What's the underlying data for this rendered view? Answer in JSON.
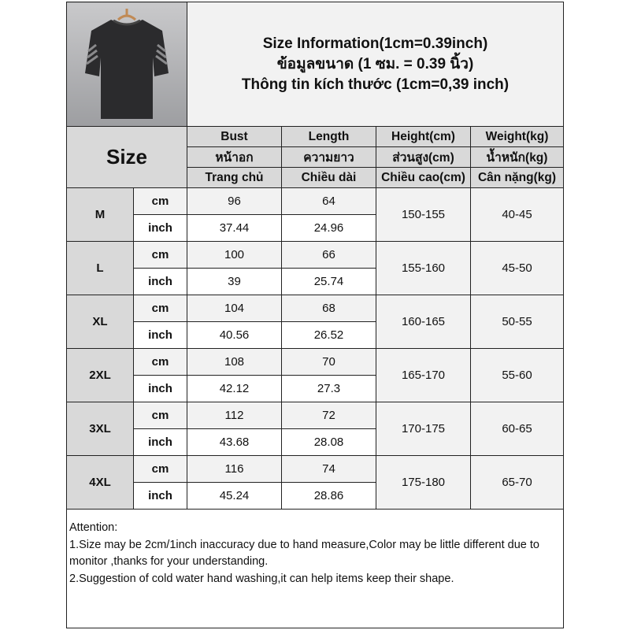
{
  "title_lines": [
    "Size Information(1cm=0.39inch)",
    "ข้อมูลขนาด (1 ซม. = 0.39 นิ้ว)",
    "Thông tin kích thước (1cm=0,39 inch)"
  ],
  "size_header": "Size",
  "columns": [
    [
      "Bust",
      "หน้าอก",
      "Trang chủ"
    ],
    [
      "Length",
      "ความยาว",
      "Chiều dài"
    ],
    [
      "Height(cm)",
      "ส่วนสูง(cm)",
      "Chiều cao(cm)"
    ],
    [
      "Weight(kg)",
      "น้ำหนัก(kg)",
      "Cân nặng(kg)"
    ]
  ],
  "units": {
    "cm": "cm",
    "inch": "inch"
  },
  "rows": [
    {
      "size": "M",
      "cm": [
        "96",
        "64"
      ],
      "inch": [
        "37.44",
        "24.96"
      ],
      "height": "150-155",
      "weight": "40-45"
    },
    {
      "size": "L",
      "cm": [
        "100",
        "66"
      ],
      "inch": [
        "39",
        "25.74"
      ],
      "height": "155-160",
      "weight": "45-50"
    },
    {
      "size": "XL",
      "cm": [
        "104",
        "68"
      ],
      "inch": [
        "40.56",
        "26.52"
      ],
      "height": "160-165",
      "weight": "50-55"
    },
    {
      "size": "2XL",
      "cm": [
        "108",
        "70"
      ],
      "inch": [
        "42.12",
        "27.3"
      ],
      "height": "165-170",
      "weight": "55-60"
    },
    {
      "size": "3XL",
      "cm": [
        "112",
        "72"
      ],
      "inch": [
        "43.68",
        "28.08"
      ],
      "height": "170-175",
      "weight": "60-65"
    },
    {
      "size": "4XL",
      "cm": [
        "116",
        "74"
      ],
      "inch": [
        "45.24",
        "28.86"
      ],
      "height": "175-180",
      "weight": "65-70"
    }
  ],
  "notes": [
    "Attention:",
    "1.Size may be 2cm/1inch inaccuracy due to hand measure,Color may be little different due to monitor ,thanks for your understanding.",
    "2.Suggestion of cold water hand washing,it can help items keep their shape."
  ],
  "product_image": "black-tshirt-on-hanger"
}
